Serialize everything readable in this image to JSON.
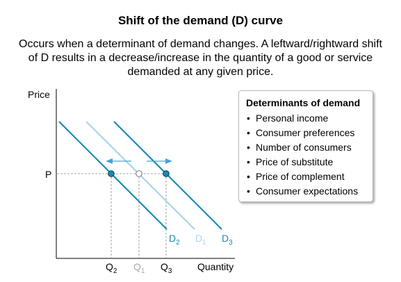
{
  "title": "Shift of the demand (D) curve",
  "subtitle_lines": [
    "Occurs when a determinant of demand changes. A leftward/rightward shift",
    "of D results in a decrease/increase in the quantity of a good or service",
    "demanded at any given price."
  ],
  "axes": {
    "y_label": "Price",
    "x_label": "Quantity",
    "price_label": "P",
    "quantity_labels": [
      {
        "base": "Q",
        "sub": "2"
      },
      {
        "base": "Q",
        "sub": "1"
      },
      {
        "base": "Q",
        "sub": "3"
      }
    ]
  },
  "curves": [
    {
      "base": "D",
      "sub": "2",
      "role": "decrease",
      "color": "#1b8ab0"
    },
    {
      "base": "D",
      "sub": "1",
      "role": "original",
      "color": "#a9d6e6"
    },
    {
      "base": "D",
      "sub": "3",
      "role": "increase",
      "color": "#1b8ab0"
    }
  ],
  "colors": {
    "axis": "#000000",
    "guide": "#8a8a8a",
    "arrow": "#4aa3d3",
    "point_active": "#1b8ab0",
    "point_original": "#aaaaaa",
    "label_faded": "#aaaaaa"
  },
  "determinants": {
    "title": "Determinants of demand",
    "items": [
      "Personal income",
      "Consumer preferences",
      "Number of consumers",
      "Price of substitute",
      "Price of complement",
      "Consumer expectations"
    ]
  }
}
